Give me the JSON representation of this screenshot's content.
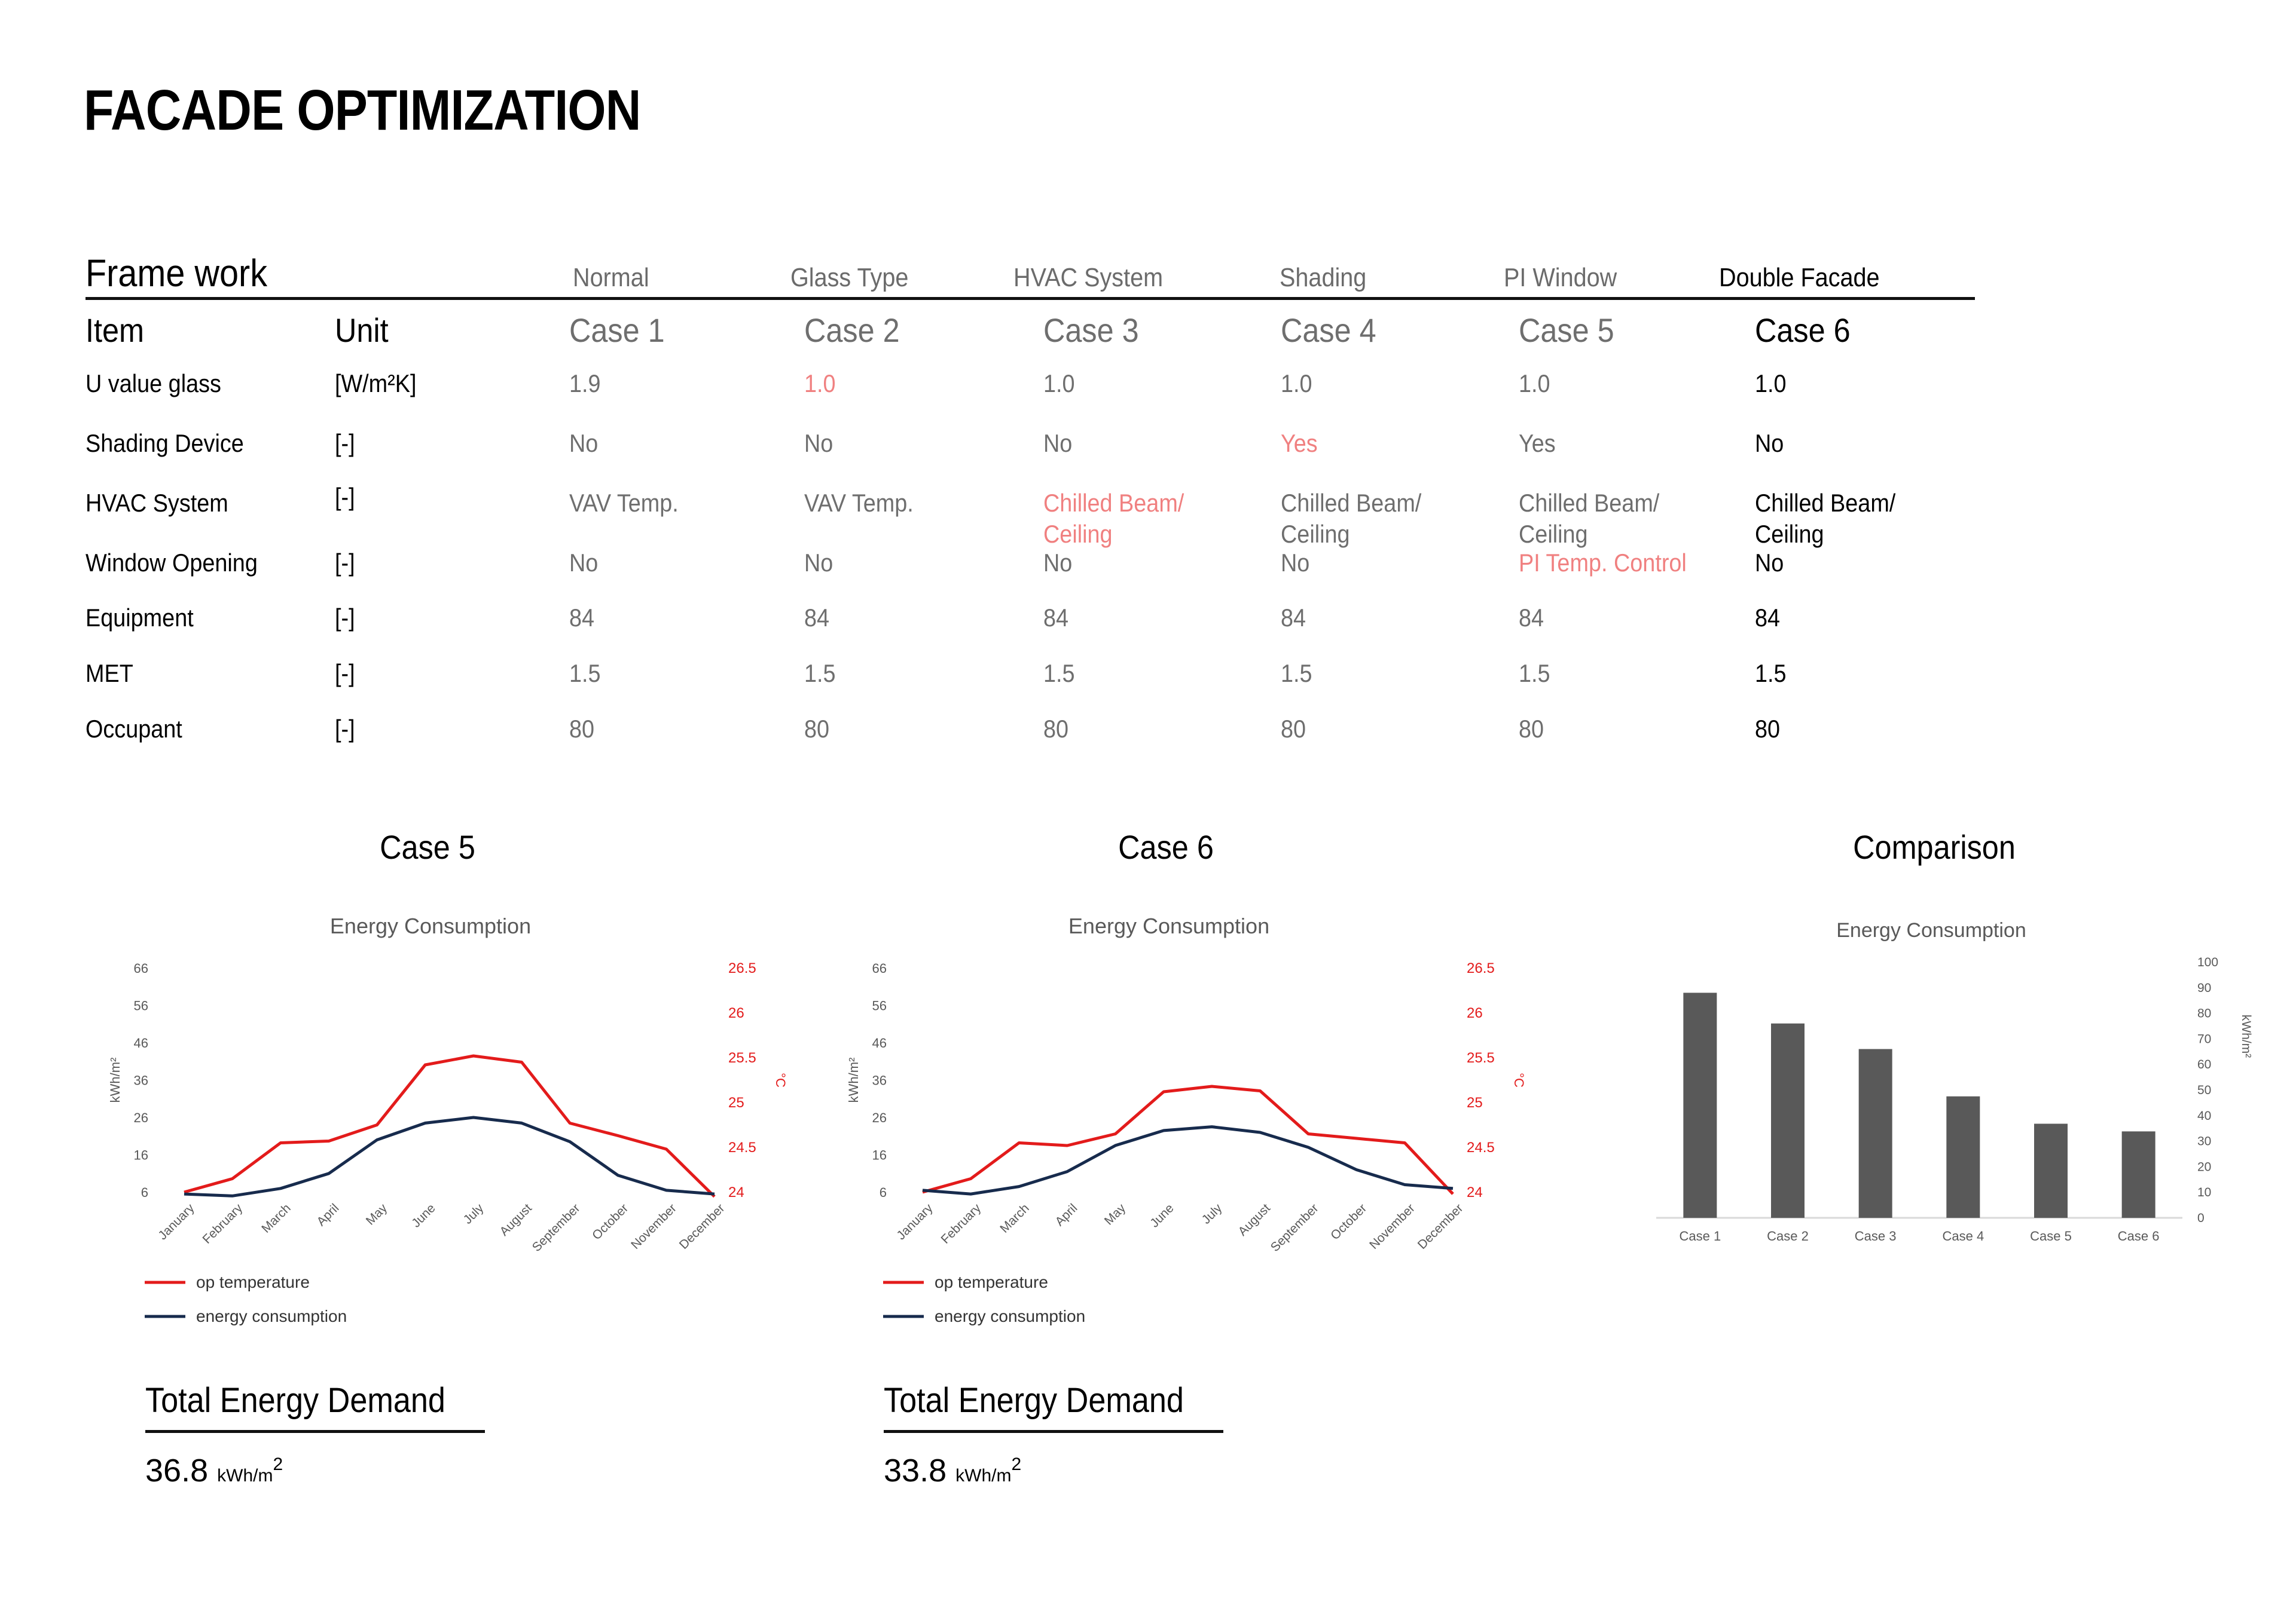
{
  "title": "FACADE OPTIMIZATION",
  "table": {
    "framework_label": "Frame work",
    "framework_headers": [
      "Normal",
      "Glass Type",
      "HVAC System",
      "Shading",
      "PI Window",
      "Double Facade"
    ],
    "item_label": "Item",
    "unit_label": "Unit",
    "cases": [
      "Case 1",
      "Case 2",
      "Case 3",
      "Case 4",
      "Case 5",
      "Case 6"
    ],
    "rows": [
      {
        "item": "U value glass",
        "unit": "[W/m²K]",
        "values": [
          "1.9",
          "1.0",
          "1.0",
          "1.0",
          "1.0",
          "1.0"
        ]
      },
      {
        "item": "Shading Device",
        "unit": "[-]",
        "values": [
          "No",
          "No",
          "No",
          "Yes",
          "Yes",
          "No"
        ]
      },
      {
        "item": "HVAC System",
        "unit": "[-]",
        "values": [
          "VAV Temp.",
          "VAV Temp.",
          "Chilled Beam/\nCeiling",
          "Chilled Beam/\nCeiling",
          "Chilled Beam/\nCeiling",
          "Chilled Beam/\nCeiling"
        ]
      },
      {
        "item": "Window Opening",
        "unit": "[-]",
        "values": [
          "No",
          "No",
          "No",
          "No",
          "PI Temp. Control",
          "No"
        ]
      },
      {
        "item": "Equipment",
        "unit": "[-]",
        "values": [
          "84",
          "84",
          "84",
          "84",
          "84",
          "84"
        ]
      },
      {
        "item": "MET",
        "unit": "[-]",
        "values": [
          "1.5",
          "1.5",
          "1.5",
          "1.5",
          "1.5",
          "1.5"
        ]
      },
      {
        "item": "Occupant",
        "unit": "[-]",
        "values": [
          "80",
          "80",
          "80",
          "80",
          "80",
          "80"
        ]
      }
    ],
    "highlight_color": "#f08080"
  },
  "panels": {
    "case5": {
      "heading": "Case 5",
      "total_label": "Total Energy Demand",
      "total_value": "36.8",
      "total_unit": "kWh/m"
    },
    "case6": {
      "heading": "Case 6",
      "total_label": "Total Energy Demand",
      "total_value": "33.8",
      "total_unit": "kWh/m"
    },
    "comparison": {
      "heading": "Comparison"
    }
  },
  "chart_data": [
    {
      "type": "line",
      "title": "Energy Consumption",
      "x": [
        "January",
        "February",
        "March",
        "April",
        "May",
        "June",
        "July",
        "August",
        "September",
        "October",
        "November",
        "December"
      ],
      "ylabel": "kWh/m²",
      "ylim": [
        6,
        66
      ],
      "yticks": [
        6,
        16,
        26,
        36,
        46,
        56,
        66
      ],
      "y2label": "°C",
      "y2lim": [
        24,
        26.5
      ],
      "y2ticks": [
        "24",
        "24.5",
        "25",
        "25.5",
        "26",
        "26.5"
      ],
      "legend_position": "bottom-left",
      "series": [
        {
          "name": "op temperature",
          "axis": "right",
          "color": "#e31b1b",
          "values": [
            24.0,
            24.15,
            24.55,
            24.57,
            24.75,
            25.42,
            25.52,
            25.45,
            24.77,
            24.63,
            24.48,
            23.95
          ]
        },
        {
          "name": "energy consumption",
          "axis": "left",
          "color": "#172b4d",
          "values": [
            5.5,
            5.0,
            7.0,
            11.0,
            20.0,
            24.5,
            26.0,
            24.5,
            19.5,
            10.5,
            6.5,
            5.5
          ]
        }
      ]
    },
    {
      "type": "line",
      "title": "Energy Consumption",
      "x": [
        "January",
        "February",
        "March",
        "April",
        "May",
        "June",
        "July",
        "August",
        "September",
        "October",
        "November",
        "December"
      ],
      "ylabel": "kWh/m²",
      "ylim": [
        6,
        66
      ],
      "yticks": [
        6,
        16,
        26,
        36,
        46,
        56,
        66
      ],
      "y2label": "°C",
      "y2lim": [
        24,
        26.5
      ],
      "y2ticks": [
        "24",
        "24.5",
        "25",
        "25.5",
        "26",
        "26.5"
      ],
      "legend_position": "bottom-left",
      "series": [
        {
          "name": "op temperature",
          "axis": "right",
          "color": "#e31b1b",
          "values": [
            24.0,
            24.15,
            24.55,
            24.52,
            24.65,
            25.12,
            25.18,
            25.13,
            24.65,
            24.6,
            24.55,
            23.98
          ]
        },
        {
          "name": "energy consumption",
          "axis": "left",
          "color": "#172b4d",
          "values": [
            6.5,
            5.5,
            7.5,
            11.5,
            18.5,
            22.5,
            23.5,
            22.0,
            18.0,
            12.0,
            8.0,
            7.0
          ]
        }
      ]
    },
    {
      "type": "bar",
      "title": "Energy Consumption",
      "categories": [
        "Case 1",
        "Case 2",
        "Case 3",
        "Case 4",
        "Case 5",
        "Case 6"
      ],
      "values": [
        88,
        76,
        66,
        47.5,
        36.8,
        33.8
      ],
      "ylabel": "kWh/m²",
      "ylim": [
        0,
        100
      ],
      "yticks": [
        0,
        10,
        20,
        30,
        40,
        50,
        60,
        70,
        80,
        90,
        100
      ],
      "axis_side": "right",
      "bar_color": "#595959"
    }
  ]
}
